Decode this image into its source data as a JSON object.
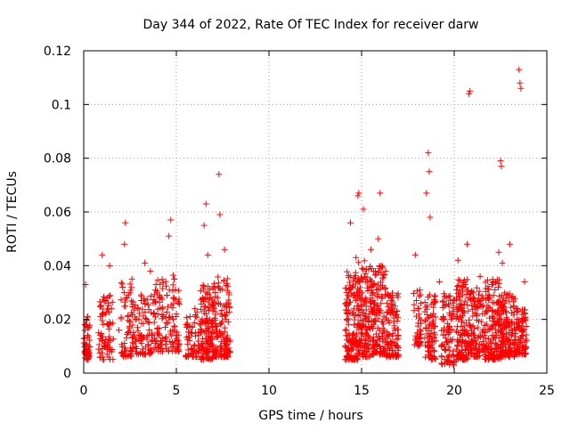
{
  "chart_data": {
    "type": "scatter",
    "title": "Day 344 of 2022, Rate Of TEC Index for receiver darw",
    "xlabel": "GPS time / hours",
    "ylabel": "ROTI / TECUs",
    "xlim": [
      0,
      25
    ],
    "ylim": [
      0,
      0.12
    ],
    "x_ticks": [
      "0",
      "5",
      "10",
      "15",
      "20",
      "25"
    ],
    "y_ticks": [
      "0",
      "0.02",
      "0.04",
      "0.06",
      "0.08",
      "0.1",
      "0.12"
    ],
    "grid": true,
    "marker": "+",
    "series": [
      {
        "color": "#ff0000",
        "points": [
          [
            0.05,
            0.008
          ],
          [
            0.05,
            0.013
          ],
          [
            0.1,
            0.018
          ],
          [
            0.1,
            0.033
          ],
          [
            0.15,
            0.011
          ],
          [
            0.2,
            0.021
          ],
          [
            0.25,
            0.007
          ],
          [
            0.8,
            0.015
          ],
          [
            0.9,
            0.021
          ],
          [
            1.0,
            0.044
          ],
          [
            1.0,
            0.012
          ],
          [
            1.2,
            0.027
          ],
          [
            1.3,
            0.018
          ],
          [
            1.4,
            0.04
          ],
          [
            1.4,
            0.008
          ],
          [
            1.5,
            0.024
          ],
          [
            1.9,
            0.016
          ],
          [
            2.1,
            0.032
          ],
          [
            2.2,
            0.048
          ],
          [
            2.25,
            0.056
          ],
          [
            2.3,
            0.013
          ],
          [
            2.4,
            0.021
          ],
          [
            2.6,
            0.035
          ],
          [
            2.7,
            0.011
          ],
          [
            2.9,
            0.017
          ],
          [
            3.1,
            0.027
          ],
          [
            3.2,
            0.009
          ],
          [
            3.3,
            0.041
          ],
          [
            3.4,
            0.02
          ],
          [
            3.6,
            0.038
          ],
          [
            3.7,
            0.014
          ],
          [
            3.9,
            0.033
          ],
          [
            4.0,
            0.022
          ],
          [
            4.0,
            0.011
          ],
          [
            4.5,
            0.029
          ],
          [
            4.6,
            0.051
          ],
          [
            4.7,
            0.057
          ],
          [
            4.8,
            0.016
          ],
          [
            4.9,
            0.035
          ],
          [
            5.0,
            0.022
          ],
          [
            5.1,
            0.012
          ],
          [
            5.6,
            0.018
          ],
          [
            5.8,
            0.009
          ],
          [
            6.0,
            0.024
          ],
          [
            6.2,
            0.014
          ],
          [
            6.4,
            0.02
          ],
          [
            6.5,
            0.055
          ],
          [
            6.6,
            0.063
          ],
          [
            6.7,
            0.044
          ],
          [
            6.8,
            0.028
          ],
          [
            6.9,
            0.011
          ],
          [
            7.1,
            0.03
          ],
          [
            7.2,
            0.016
          ],
          [
            7.3,
            0.074
          ],
          [
            7.35,
            0.059
          ],
          [
            7.4,
            0.022
          ],
          [
            7.6,
            0.046
          ],
          [
            7.7,
            0.013
          ],
          [
            7.8,
            0.019
          ],
          [
            7.9,
            0.008
          ],
          [
            14.2,
            0.025
          ],
          [
            14.3,
            0.012
          ],
          [
            14.4,
            0.056
          ],
          [
            14.5,
            0.032
          ],
          [
            14.6,
            0.018
          ],
          [
            14.7,
            0.043
          ],
          [
            14.8,
            0.066
          ],
          [
            14.85,
            0.067
          ],
          [
            14.9,
            0.028
          ],
          [
            15.0,
            0.015
          ],
          [
            15.1,
            0.061
          ],
          [
            15.2,
            0.037
          ],
          [
            15.4,
            0.022
          ],
          [
            15.5,
            0.046
          ],
          [
            15.6,
            0.012
          ],
          [
            15.8,
            0.031
          ],
          [
            15.9,
            0.05
          ],
          [
            16.0,
            0.067
          ],
          [
            16.1,
            0.019
          ],
          [
            16.3,
            0.038
          ],
          [
            16.4,
            0.009
          ],
          [
            16.6,
            0.027
          ],
          [
            16.8,
            0.016
          ],
          [
            16.9,
            0.023
          ],
          [
            17.9,
            0.044
          ],
          [
            18.0,
            0.015
          ],
          [
            18.2,
            0.026
          ],
          [
            18.5,
            0.067
          ],
          [
            18.6,
            0.082
          ],
          [
            18.65,
            0.075
          ],
          [
            18.7,
            0.058
          ],
          [
            18.8,
            0.018
          ],
          [
            19.0,
            0.012
          ],
          [
            19.2,
            0.034
          ],
          [
            19.4,
            0.021
          ],
          [
            19.6,
            0.004
          ],
          [
            19.8,
            0.016
          ],
          [
            20.0,
            0.027
          ],
          [
            20.2,
            0.042
          ],
          [
            20.4,
            0.019
          ],
          [
            20.6,
            0.033
          ],
          [
            20.7,
            0.048
          ],
          [
            20.8,
            0.104
          ],
          [
            20.85,
            0.105
          ],
          [
            20.9,
            0.009
          ],
          [
            21.2,
            0.022
          ],
          [
            21.4,
            0.036
          ],
          [
            21.6,
            0.014
          ],
          [
            21.8,
            0.028
          ],
          [
            22.0,
            0.011
          ],
          [
            22.2,
            0.031
          ],
          [
            22.4,
            0.045
          ],
          [
            22.5,
            0.079
          ],
          [
            22.55,
            0.077
          ],
          [
            22.6,
            0.041
          ],
          [
            22.8,
            0.017
          ],
          [
            23.0,
            0.048
          ],
          [
            23.2,
            0.025
          ],
          [
            23.4,
            0.01
          ],
          [
            23.5,
            0.113
          ],
          [
            23.55,
            0.108
          ],
          [
            23.6,
            0.106
          ],
          [
            23.7,
            0.019
          ],
          [
            23.8,
            0.034
          ],
          [
            23.9,
            0.012
          ]
        ],
        "clusters": [
          {
            "x": [
              0.0,
              0.35
            ],
            "y": [
              0.005,
              0.021
            ],
            "n": 45
          },
          {
            "x": [
              0.8,
              1.6
            ],
            "y": [
              0.005,
              0.029
            ],
            "n": 70
          },
          {
            "x": [
              2.0,
              2.8
            ],
            "y": [
              0.006,
              0.034
            ],
            "n": 70
          },
          {
            "x": [
              2.8,
              3.7
            ],
            "y": [
              0.007,
              0.03
            ],
            "n": 70
          },
          {
            "x": [
              3.7,
              4.3
            ],
            "y": [
              0.008,
              0.035
            ],
            "n": 60
          },
          {
            "x": [
              4.4,
              5.2
            ],
            "y": [
              0.008,
              0.038
            ],
            "n": 70
          },
          {
            "x": [
              5.5,
              6.3
            ],
            "y": [
              0.006,
              0.024
            ],
            "n": 60
          },
          {
            "x": [
              6.3,
              7.0
            ],
            "y": [
              0.005,
              0.034
            ],
            "n": 130
          },
          {
            "x": [
              7.0,
              7.9
            ],
            "y": [
              0.006,
              0.036
            ],
            "n": 130
          },
          {
            "x": [
              14.1,
              14.8
            ],
            "y": [
              0.005,
              0.038
            ],
            "n": 140
          },
          {
            "x": [
              14.8,
              15.6
            ],
            "y": [
              0.006,
              0.042
            ],
            "n": 150
          },
          {
            "x": [
              15.6,
              16.3
            ],
            "y": [
              0.007,
              0.04
            ],
            "n": 120
          },
          {
            "x": [
              16.3,
              17.0
            ],
            "y": [
              0.006,
              0.03
            ],
            "n": 100
          },
          {
            "x": [
              17.8,
              18.2
            ],
            "y": [
              0.01,
              0.035
            ],
            "n": 40
          },
          {
            "x": [
              18.4,
              19.0
            ],
            "y": [
              0.005,
              0.03
            ],
            "n": 80
          },
          {
            "x": [
              19.3,
              20.0
            ],
            "y": [
              0.003,
              0.03
            ],
            "n": 90
          },
          {
            "x": [
              20.1,
              20.8
            ],
            "y": [
              0.005,
              0.035
            ],
            "n": 130
          },
          {
            "x": [
              20.8,
              21.6
            ],
            "y": [
              0.006,
              0.032
            ],
            "n": 100
          },
          {
            "x": [
              21.6,
              22.5
            ],
            "y": [
              0.005,
              0.035
            ],
            "n": 160
          },
          {
            "x": [
              22.5,
              23.3
            ],
            "y": [
              0.006,
              0.03
            ],
            "n": 140
          },
          {
            "x": [
              23.3,
              23.9
            ],
            "y": [
              0.007,
              0.025
            ],
            "n": 90
          }
        ]
      }
    ]
  }
}
